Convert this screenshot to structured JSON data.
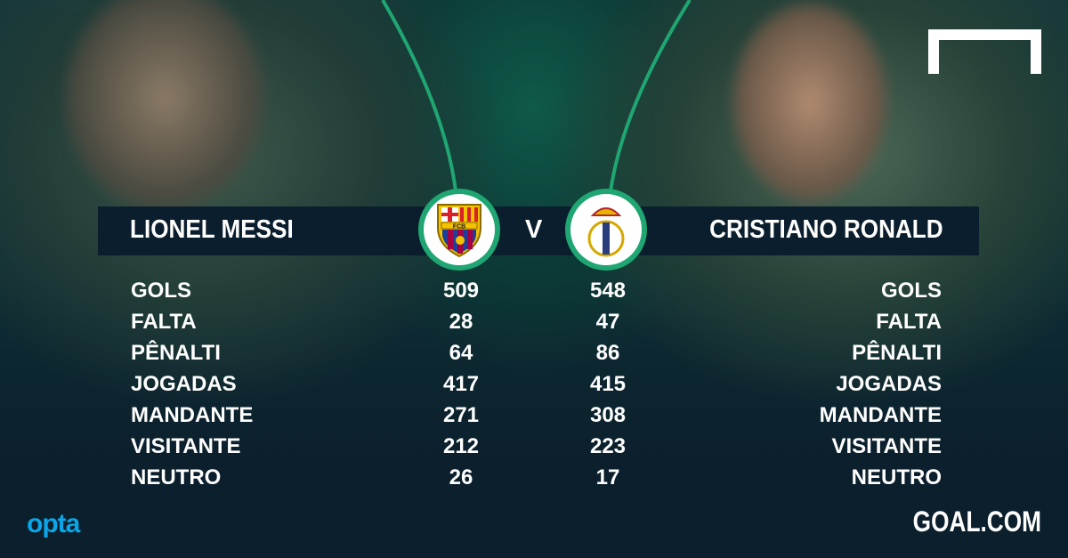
{
  "header": {
    "left_player": "LIONEL MESSI",
    "versus": "V",
    "right_player": "CRISTIANO RONALD",
    "left_crest": "fc-barcelona-crest",
    "left_crest_text": "FCB",
    "right_crest": "real-madrid-crest"
  },
  "stats": [
    {
      "label": "GOLS",
      "left": "509",
      "right": "548"
    },
    {
      "label": "FALTA",
      "left": "28",
      "right": "47"
    },
    {
      "label": "PÊNALTI",
      "left": "64",
      "right": "86"
    },
    {
      "label": "JOGADAS",
      "left": "417",
      "right": "415"
    },
    {
      "label": "MANDANTE",
      "left": "271",
      "right": "308"
    },
    {
      "label": "VISITANTE",
      "left": "212",
      "right": "223"
    },
    {
      "label": "NEUTRO",
      "left": "26",
      "right": "17"
    }
  ],
  "footer": {
    "source": "opta",
    "brand": "GOAL.COM"
  },
  "colors": {
    "accent_green": "#1fa672",
    "bar": "#0b1e2d",
    "opta_blue": "#0aa6e8"
  }
}
